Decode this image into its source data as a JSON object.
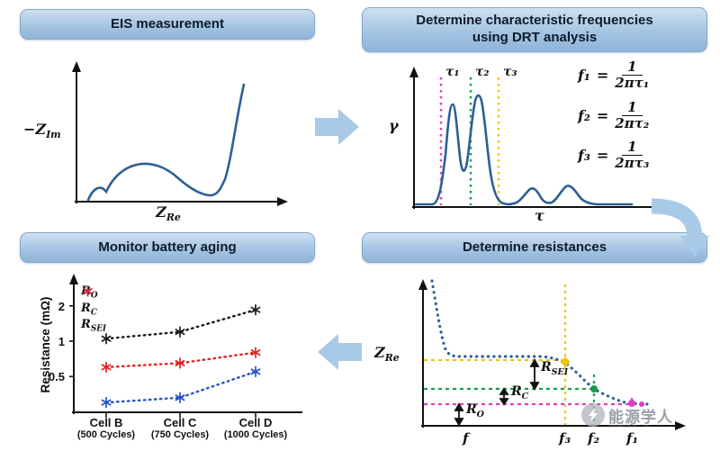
{
  "colors": {
    "arrow": "#a9c9e8",
    "curve_blue": "#2d5f96",
    "dotted_blue": "#2d5f9e",
    "magenta": "#e23cc3",
    "green": "#12a14b",
    "yellow": "#f0c413",
    "axis": "#111111"
  },
  "panels": {
    "eis": {
      "title": "EIS measurement",
      "ylabel_base": "−Z",
      "ylabel_sub": "Im",
      "xlabel_base": "Z",
      "xlabel_sub": "Re"
    },
    "drt": {
      "title_line1": "Determine characteristic frequencies",
      "title_line2": "using DRT analysis",
      "ylabel": "γ",
      "xlabel": "τ",
      "tau_labels": [
        "τ₁",
        "τ₂",
        "τ₃"
      ],
      "formulas": [
        {
          "lhs": "f₁",
          "eq": "=",
          "num": "1",
          "den": "2πτ₁"
        },
        {
          "lhs": "f₂",
          "eq": "=",
          "num": "1",
          "den": "2πτ₂"
        },
        {
          "lhs": "f₃",
          "eq": "=",
          "num": "1",
          "den": "2πτ₃"
        }
      ]
    },
    "resistances": {
      "title": "Determine resistances",
      "ylabel_base": "Z",
      "ylabel_sub": "Re",
      "xlabel": "f",
      "freq_labels": [
        "f₃",
        "f₂",
        "f₁"
      ],
      "labels": [
        {
          "base": "R",
          "sub": "SEI"
        },
        {
          "base": "R",
          "sub": "C"
        },
        {
          "base": "R",
          "sub": "O"
        }
      ]
    },
    "aging": {
      "title": "Monitor battery aging",
      "ylabel": "Resistance (mΩ)",
      "yticks": [
        {
          "label": "2",
          "value": 2
        },
        {
          "label": "1",
          "value": 1
        },
        {
          "label": "0.5",
          "value": 0.5
        }
      ],
      "legend": [
        {
          "base": "R",
          "sub": "O",
          "color": "#1a1a1a"
        },
        {
          "base": "R",
          "sub": "C",
          "color": "#2853c6"
        },
        {
          "base": "R",
          "sub": "SEI",
          "color": "#e02424"
        }
      ],
      "categories": [
        {
          "cell": "Cell B",
          "cycles": "(500 Cycles)"
        },
        {
          "cell": "Cell C",
          "cycles": "(750 Cycles)"
        },
        {
          "cell": "Cell D",
          "cycles": "(1000 Cycles)"
        }
      ]
    }
  },
  "chart_data": {
    "type": "scatter",
    "title": "Monitor battery aging",
    "ylabel": "Resistance (mΩ)",
    "categories": [
      "Cell B (500 Cycles)",
      "Cell C (750 Cycles)",
      "Cell D (1000 Cycles)"
    ],
    "yticks": [
      0.5,
      1,
      2
    ],
    "series": [
      {
        "name": "R_O",
        "color": "#1a1a1a",
        "values": [
          1.05,
          1.2,
          1.85
        ]
      },
      {
        "name": "R_C",
        "color": "#2853c6",
        "values": [
          0.3,
          0.33,
          0.55
        ]
      },
      {
        "name": "R_SEI",
        "color": "#e02424",
        "values": [
          0.6,
          0.65,
          0.8
        ]
      }
    ],
    "marker": "asterisk",
    "line_style": "dotted",
    "legend_position": "upper-left"
  },
  "watermark": {
    "icon": "lightning-bolt",
    "text": "能源学人"
  }
}
